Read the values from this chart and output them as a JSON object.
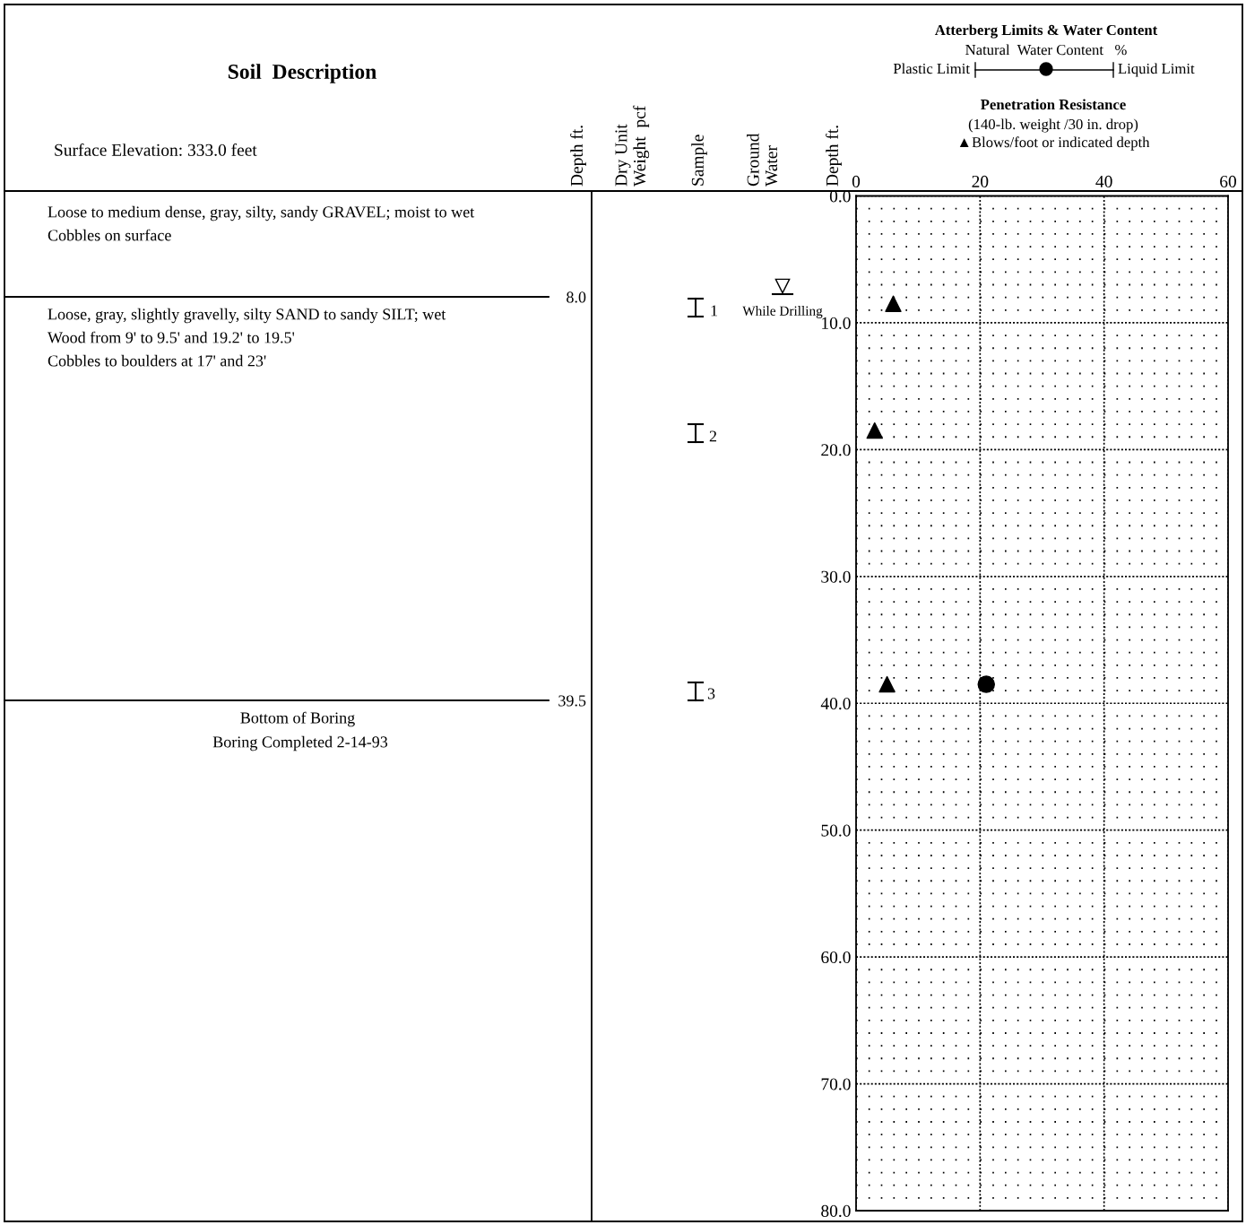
{
  "chart_data": {
    "type": "scatter",
    "title": "Atterberg Limits & Water Content",
    "ylabel": "Depth ft.",
    "series": [
      {
        "marker": "triangle",
        "color": "#000000",
        "x": [
          6,
          3,
          5
        ],
        "values": [
          8.5,
          18.5,
          38.5
        ]
      },
      {
        "marker": "circle",
        "color": "#000000",
        "x": [
          21
        ],
        "values": [
          38.5
        ]
      }
    ],
    "xlim": [
      0,
      60
    ],
    "xticks": [
      0,
      20,
      40,
      60
    ],
    "ylim": [
      80,
      0
    ],
    "yticks": [
      {
        "value": 0,
        "label": "0.0"
      },
      {
        "value": 10,
        "label": "10.0"
      },
      {
        "value": 20,
        "label": "20.0"
      },
      {
        "value": 30,
        "label": "30.0"
      },
      {
        "value": 40,
        "label": "40.0"
      },
      {
        "value": 50,
        "label": "50.0"
      },
      {
        "value": 60,
        "label": "60.0"
      },
      {
        "value": 70,
        "label": "70.0"
      },
      {
        "value": 80,
        "label": "80.0"
      }
    ],
    "grid": true,
    "legend": false,
    "annotations": [
      "Soil  Description",
      "Surface Elevation: 333.0 feet",
      "Depth ft.",
      "Dry Unit\nWeight  pcf",
      "Sample",
      "Ground\nWater",
      "Natural  Water Content   %",
      "Plastic Limit",
      "Liquid Limit",
      "Penetration Resistance",
      "(140-lb. weight /30 in. drop)",
      "▲Blows/foot or indicated depth",
      "Loose to medium dense, gray, silty, sandy GRAVEL; moist to wet",
      "Cobbles on surface",
      "8.0",
      "Loose, gray, slightly gravelly, silty SAND to sandy SILT; wet",
      "Wood from 9' to 9.5' and 19.2' to 19.5'",
      "Cobbles to boulders at 17' and 23'",
      "1",
      "While Drilling",
      "2",
      "39.5",
      "3",
      "Bottom of Boring",
      "Boring Completed 2-14-93"
    ]
  }
}
